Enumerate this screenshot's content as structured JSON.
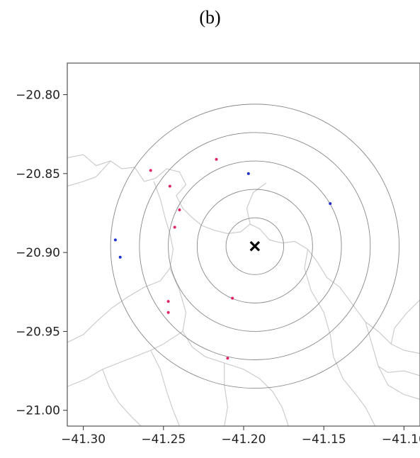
{
  "caption": "(b)",
  "chart_data": {
    "type": "scatter",
    "title": "",
    "xlabel": "",
    "ylabel": "",
    "xlim": [
      -41.31,
      -41.09
    ],
    "ylim": [
      -21.01,
      -20.78
    ],
    "xticks": [
      -41.3,
      -41.25,
      -41.2,
      -41.15,
      -41.1
    ],
    "xtick_labels": [
      "−41.30",
      "−41.25",
      "−41.20",
      "−41.15",
      "−41.10"
    ],
    "yticks": [
      -20.8,
      -20.85,
      -20.9,
      -20.95,
      -21.0
    ],
    "ytick_labels": [
      "−20.80",
      "−20.85",
      "−20.90",
      "−20.95",
      "−21.00"
    ],
    "grid": false,
    "center": {
      "x": -41.193,
      "y": -20.896,
      "marker": "x",
      "color": "#000000"
    },
    "ring_radii": [
      0.018,
      0.036,
      0.054,
      0.072,
      0.09
    ],
    "ring_color": "#888888",
    "boundary_color": "#c8c8c8",
    "series": [
      {
        "color": "#e0245e",
        "points": [
          {
            "x": -41.217,
            "y": -20.841
          },
          {
            "x": -41.258,
            "y": -20.848
          },
          {
            "x": -41.246,
            "y": -20.858
          },
          {
            "x": -41.24,
            "y": -20.873
          },
          {
            "x": -41.243,
            "y": -20.884
          },
          {
            "x": -41.207,
            "y": -20.929
          },
          {
            "x": -41.247,
            "y": -20.931
          },
          {
            "x": -41.247,
            "y": -20.938
          },
          {
            "x": -41.21,
            "y": -20.967
          }
        ]
      },
      {
        "color": "#2030d0",
        "points": [
          {
            "x": -41.197,
            "y": -20.85
          },
          {
            "x": -41.146,
            "y": -20.869
          },
          {
            "x": -41.28,
            "y": -20.892
          },
          {
            "x": -41.277,
            "y": -20.903
          }
        ]
      }
    ]
  }
}
